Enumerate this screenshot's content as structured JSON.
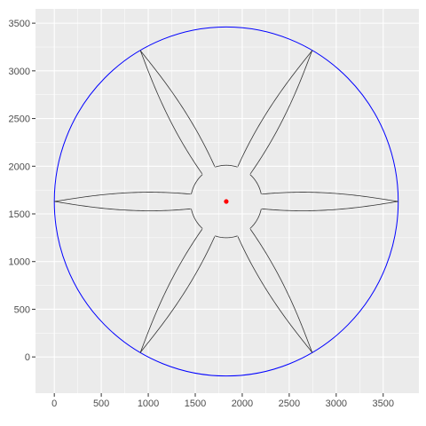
{
  "chart_data": {
    "type": "line",
    "title": "",
    "xlabel": "",
    "ylabel": "",
    "xlim": [
      -200,
      3880
    ],
    "ylim": [
      -380,
      3650
    ],
    "x_ticks": [
      0,
      500,
      1000,
      1500,
      2000,
      2500,
      3000,
      3500
    ],
    "x_tick_labels": [
      "0",
      "500",
      "1000",
      "1500",
      "2000",
      "2500",
      "3000",
      "3500"
    ],
    "y_ticks": [
      0,
      500,
      1000,
      1500,
      2000,
      2500,
      3000,
      3500
    ],
    "y_tick_labels": [
      "0",
      "500",
      "1000",
      "1500",
      "2000",
      "2500",
      "3000",
      "3500"
    ],
    "grid": true,
    "panel_background": "#ebebeb",
    "grid_color": "#ffffff",
    "center": {
      "x": 1830,
      "y": 1630,
      "color": "#ff0000"
    },
    "outer_circle": {
      "cx": 1830,
      "cy": 1630,
      "r": 1830,
      "color": "#0000ff"
    },
    "hub": {
      "cx": 1830,
      "cy": 1630,
      "r": 380,
      "color": "#333333"
    },
    "spokes": {
      "count": 6,
      "angles_deg": [
        0,
        60,
        120,
        180,
        240,
        300
      ],
      "tip_radius": 1830,
      "base_radius": 380,
      "max_half_width": 140,
      "color": "#333333"
    }
  }
}
